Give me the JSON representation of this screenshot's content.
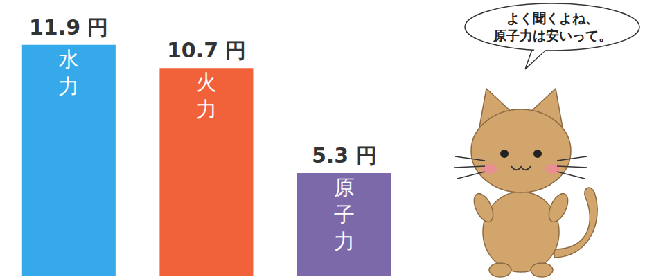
{
  "chart_data": {
    "type": "bar",
    "categories": [
      "水力",
      "火力",
      "原子力"
    ],
    "values": [
      11.9,
      10.7,
      5.3
    ],
    "value_labels": [
      "11.9 円",
      "10.7 円",
      "5.3 円"
    ],
    "colors": [
      "#35a9e9",
      "#f1623b",
      "#7b69a9"
    ],
    "ylim": [
      0,
      14.2
    ],
    "grid": false,
    "data_labels": true,
    "tick_labels": false,
    "annotation": "よく聞くよね、原子力は安いって。"
  }
}
